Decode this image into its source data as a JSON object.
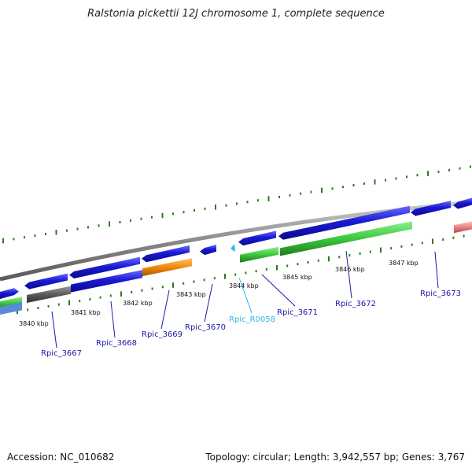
{
  "title": "Ralstonia pickettii 12J chromosome 1, complete sequence",
  "footer": {
    "accession": "Accession: NC_010682",
    "summary": "Topology: circular; Length: 3,942,557 bp; Genes: 3,767"
  },
  "colors": {
    "cds": "#1a1ad6",
    "rrna": "#2fb82f",
    "pseudo": "#5a5a5a",
    "orange": "#f28a0a",
    "pink": "#e88080",
    "trna": "#2fb6e8",
    "label": "#1a1aa0",
    "backbone": "#888888",
    "tick": "#2d7a1f"
  },
  "scale_ticks": [
    {
      "label": "3840 kbp"
    },
    {
      "label": "3841 kbp"
    },
    {
      "label": "3842 kbp"
    },
    {
      "label": "3843 kbp"
    },
    {
      "label": "3844 kbp"
    },
    {
      "label": "3845 kbp"
    },
    {
      "label": "3846 kbp"
    },
    {
      "label": "3847 kbp"
    }
  ],
  "gene_labels": [
    {
      "name": "Rpic_3667",
      "type": "cds"
    },
    {
      "name": "Rpic_3668",
      "type": "cds"
    },
    {
      "name": "Rpic_3669",
      "type": "cds"
    },
    {
      "name": "Rpic_3670",
      "type": "cds"
    },
    {
      "name": "Rpic_R0058",
      "type": "trna"
    },
    {
      "name": "Rpic_3671",
      "type": "cds"
    },
    {
      "name": "Rpic_3672",
      "type": "cds"
    },
    {
      "name": "Rpic_3673",
      "type": "cds"
    }
  ]
}
